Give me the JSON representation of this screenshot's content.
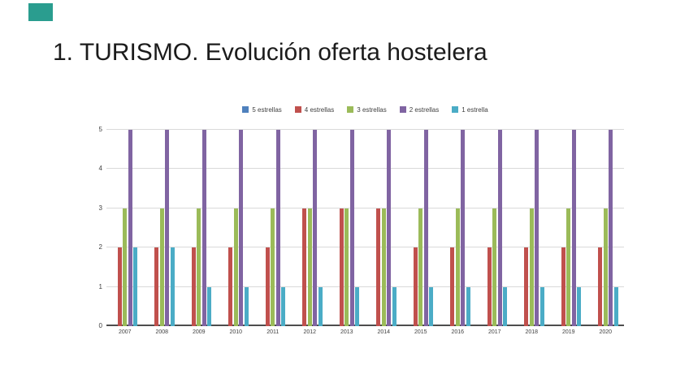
{
  "slide": {
    "title": "1. TURISMO. Evolución oferta hostelera",
    "accent_color": "#2a9d8f"
  },
  "chart_data": {
    "type": "bar",
    "title": "",
    "xlabel": "",
    "ylabel": "",
    "categories": [
      "2007",
      "2008",
      "2009",
      "2010",
      "2011",
      "2012",
      "2013",
      "2014",
      "2015",
      "2016",
      "2017",
      "2018",
      "2019",
      "2020"
    ],
    "series": [
      {
        "name": "5 estrellas",
        "color": "#4f81bd",
        "values": [
          0,
          0,
          0,
          0,
          0,
          0,
          0,
          0,
          0,
          0,
          0,
          0,
          0,
          0
        ]
      },
      {
        "name": "4 estrellas",
        "color": "#c0504d",
        "values": [
          2,
          2,
          2,
          2,
          2,
          3,
          3,
          3,
          2,
          2,
          2,
          2,
          2,
          2
        ]
      },
      {
        "name": "3 estrellas",
        "color": "#9bbb59",
        "values": [
          3,
          3,
          3,
          3,
          3,
          3,
          3,
          3,
          3,
          3,
          3,
          3,
          3,
          3
        ]
      },
      {
        "name": "2 estrellas",
        "color": "#8064a2",
        "values": [
          5,
          5,
          5,
          5,
          5,
          5,
          5,
          5,
          5,
          5,
          5,
          5,
          5,
          5
        ]
      },
      {
        "name": "1 estrella",
        "color": "#4bacc6",
        "values": [
          2,
          2,
          1,
          1,
          1,
          1,
          1,
          1,
          1,
          1,
          1,
          1,
          1,
          1
        ]
      }
    ],
    "ylim": [
      0,
      5
    ],
    "yticks": [
      0,
      1,
      2,
      3,
      4,
      5
    ],
    "grid": true,
    "legend_position": "top",
    "gridline_color": "#d9d9d9",
    "axis_line_color": "#4d4d4d"
  }
}
